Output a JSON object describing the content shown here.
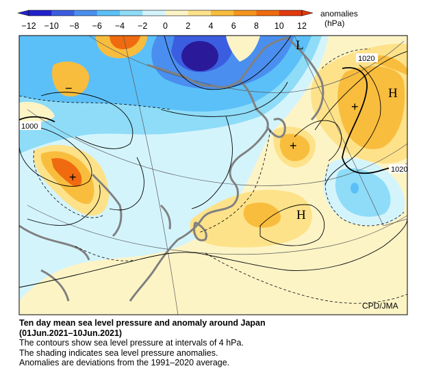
{
  "legend": {
    "title_line1": "anomalies",
    "title_line2": "(hPa)",
    "ticks": [
      "−12",
      "−10",
      "−8",
      "−6",
      "−4",
      "−2",
      "0",
      "2",
      "4",
      "6",
      "8",
      "10",
      "12"
    ],
    "colors": [
      "#2222cc",
      "#3b5ee0",
      "#4a8ff0",
      "#5cc0f8",
      "#8edcf8",
      "#d4f4fc",
      "#fdf4c6",
      "#fde28a",
      "#f9bd3e",
      "#f5951e",
      "#f06a10",
      "#e23a0c"
    ]
  },
  "map": {
    "labels": {
      "low_L": "L",
      "high_H_east": "H",
      "high_H_south": "H",
      "plus": "+",
      "minus": "−"
    },
    "contour_labels": [
      "1020",
      "1000",
      "1020"
    ],
    "credit": "CPD/JMA"
  },
  "caption": {
    "title_line1": "Ten day mean sea level pressure and anomaly around Japan",
    "title_line2": "(01Jun.2021–10Jun.2021)",
    "line3": "The contours show sea level pressure at intervals of 4 hPa.",
    "line4": "The shading indicates sea level pressure anomalies.",
    "line5": "Anomalies are deviations from the 1991–2020 average."
  }
}
